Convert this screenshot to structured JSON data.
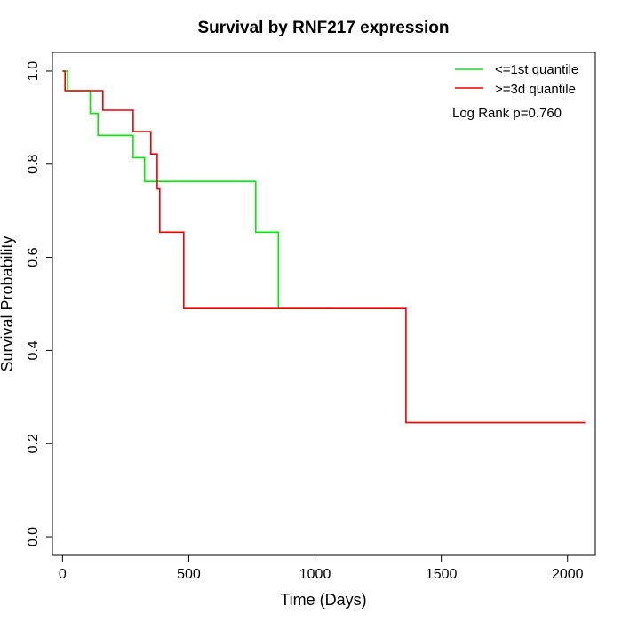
{
  "chart_data": {
    "type": "line",
    "title": "Survival by RNF217 expression",
    "xlabel": "Time (Days)",
    "ylabel": "Survival Probability",
    "xlim": [
      -40,
      2110
    ],
    "ylim": [
      -0.04,
      1.04
    ],
    "x_ticks": [
      0,
      500,
      1000,
      1500,
      2000
    ],
    "y_ticks": [
      0.0,
      0.2,
      0.4,
      0.6,
      0.8,
      1.0
    ],
    "x_tick_labels": [
      "0",
      "500",
      "1000",
      "1500",
      "2000"
    ],
    "y_tick_labels": [
      "0.0",
      "0.2",
      "0.4",
      "0.6",
      "0.8",
      "1.0"
    ],
    "grid": false,
    "legend_position": "top-right",
    "annotation": "Log Rank p=0.760",
    "series": [
      {
        "name": "<=1st quantile",
        "color": "#00ee00",
        "x": [
          0,
          20,
          20,
          110,
          110,
          140,
          140,
          280,
          280,
          325,
          325,
          765,
          765,
          855,
          855,
          1070
        ],
        "y": [
          1.0,
          1.0,
          0.958,
          0.958,
          0.909,
          0.909,
          0.862,
          0.862,
          0.814,
          0.814,
          0.763,
          0.763,
          0.654,
          0.654,
          0.49,
          0.49
        ]
      },
      {
        "name": ">=3d quantile",
        "color": "#ee0000",
        "x": [
          0,
          10,
          10,
          160,
          160,
          280,
          280,
          350,
          350,
          375,
          375,
          385,
          385,
          480,
          480,
          1360,
          1360,
          2070
        ],
        "y": [
          1.0,
          1.0,
          0.958,
          0.958,
          0.916,
          0.916,
          0.87,
          0.87,
          0.822,
          0.822,
          0.747,
          0.747,
          0.654,
          0.654,
          0.49,
          0.49,
          0.245,
          0.245
        ]
      }
    ]
  }
}
